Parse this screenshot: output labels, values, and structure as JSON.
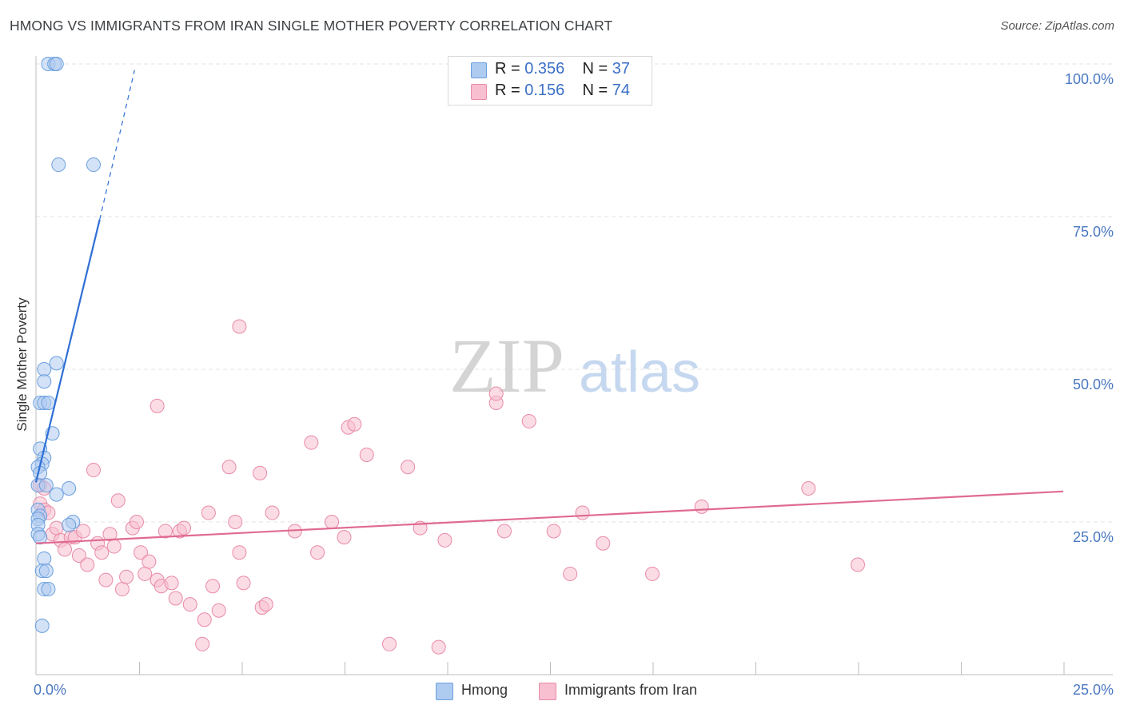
{
  "title": "HMONG VS IMMIGRANTS FROM IRAN SINGLE MOTHER POVERTY CORRELATION CHART",
  "source": "Source: ZipAtlas.com",
  "watermark": {
    "zip": "ZIP",
    "atlas": "atlas"
  },
  "legend": {
    "rows": [
      {
        "r_label": "R =",
        "r_value": "0.356",
        "n_label": "N =",
        "n_value": "37"
      },
      {
        "r_label": "R =",
        "r_value": "0.156",
        "n_label": "N =",
        "n_value": "74"
      }
    ]
  },
  "bottom_legend": {
    "hmong": "Hmong",
    "iran": "Immigrants from Iran"
  },
  "colors": {
    "hmong_fill": "#aecbf0",
    "hmong_stroke": "#6b9fde",
    "hmong_line": "#2f6fd6",
    "iran_fill": "#f8bfd0",
    "iran_stroke": "#e98aa7",
    "iran_line": "#e06a93",
    "tick_text": "#4a78c2",
    "grid": "#e3e3e3"
  },
  "chart_data": {
    "type": "scatter",
    "title": "HMONG VS IMMIGRANTS FROM IRAN SINGLE MOTHER POVERTY CORRELATION CHART",
    "xlabel": "",
    "ylabel": "Single Mother Poverty",
    "xlim": [
      0,
      25
    ],
    "ylim": [
      0,
      100
    ],
    "x_tick_labels": [
      {
        "value": 0,
        "label": "0.0%"
      },
      {
        "value": 25,
        "label": "25.0%"
      }
    ],
    "x_minor_ticks": [
      2.5,
      5,
      7.5,
      10,
      12.5,
      15,
      17.5,
      20,
      22.5,
      25
    ],
    "y_ticks": [
      {
        "value": 25,
        "label": "25.0%"
      },
      {
        "value": 50,
        "label": "50.0%"
      },
      {
        "value": 75,
        "label": "75.0%"
      },
      {
        "value": 100,
        "label": "100.0%"
      }
    ],
    "grid": true,
    "series": [
      {
        "name": "Hmong",
        "R": 0.356,
        "N": 37,
        "points": [
          [
            0.3,
            100
          ],
          [
            0.45,
            100
          ],
          [
            0.5,
            100
          ],
          [
            0.55,
            83.5
          ],
          [
            1.4,
            83.5
          ],
          [
            0.5,
            51
          ],
          [
            0.2,
            50
          ],
          [
            0.2,
            48
          ],
          [
            0.1,
            44.5
          ],
          [
            0.2,
            44.5
          ],
          [
            0.3,
            44.5
          ],
          [
            0.4,
            39.5
          ],
          [
            0.1,
            37
          ],
          [
            0.2,
            35.5
          ],
          [
            0.15,
            34.5
          ],
          [
            0.05,
            34
          ],
          [
            0.1,
            33
          ],
          [
            0.05,
            31
          ],
          [
            0.25,
            31
          ],
          [
            0.8,
            30.5
          ],
          [
            0.5,
            29.5
          ],
          [
            0.05,
            27
          ],
          [
            0.1,
            26
          ],
          [
            0.05,
            25.5
          ],
          [
            0.9,
            25
          ],
          [
            0.8,
            24.5
          ],
          [
            0.05,
            24.5
          ],
          [
            0.05,
            23
          ],
          [
            0.1,
            22.5
          ],
          [
            0.2,
            19
          ],
          [
            0.15,
            17
          ],
          [
            0.25,
            17
          ],
          [
            0.2,
            14
          ],
          [
            0.3,
            14
          ],
          [
            0.15,
            8
          ]
        ],
        "trendline": {
          "x0": 0,
          "y0": 31.5,
          "x1": 1.55,
          "y1": 74.5,
          "dashed_to": {
            "x": 2.4,
            "y": 99
          }
        }
      },
      {
        "name": "Immigrants from Iran",
        "R": 0.156,
        "N": 74,
        "points": [
          [
            0.1,
            31
          ],
          [
            0.2,
            30.5
          ],
          [
            0.1,
            28
          ],
          [
            0.2,
            27
          ],
          [
            0.3,
            26.5
          ],
          [
            0.4,
            23
          ],
          [
            0.5,
            24
          ],
          [
            0.6,
            22
          ],
          [
            0.7,
            20.5
          ],
          [
            0.85,
            22.5
          ],
          [
            0.95,
            22.5
          ],
          [
            1.05,
            19.5
          ],
          [
            1.15,
            23.5
          ],
          [
            1.25,
            18
          ],
          [
            1.4,
            33.5
          ],
          [
            1.5,
            21.5
          ],
          [
            1.6,
            20
          ],
          [
            1.7,
            15.5
          ],
          [
            1.8,
            23
          ],
          [
            1.9,
            21
          ],
          [
            2.0,
            28.5
          ],
          [
            2.1,
            14
          ],
          [
            2.2,
            16
          ],
          [
            2.35,
            24
          ],
          [
            2.45,
            25
          ],
          [
            2.55,
            20
          ],
          [
            2.65,
            16.5
          ],
          [
            2.75,
            18.5
          ],
          [
            2.95,
            15.5
          ],
          [
            3.05,
            14.5
          ],
          [
            3.15,
            23.5
          ],
          [
            3.3,
            15
          ],
          [
            3.4,
            12.5
          ],
          [
            3.5,
            23.5
          ],
          [
            3.6,
            24
          ],
          [
            3.75,
            11.5
          ],
          [
            4.05,
            5
          ],
          [
            4.1,
            9
          ],
          [
            4.2,
            26.5
          ],
          [
            4.3,
            14.5
          ],
          [
            4.45,
            10.5
          ],
          [
            4.7,
            34
          ],
          [
            4.85,
            25
          ],
          [
            4.95,
            20
          ],
          [
            5.05,
            15
          ],
          [
            5.45,
            33
          ],
          [
            5.5,
            11
          ],
          [
            5.6,
            11.5
          ],
          [
            5.75,
            26.5
          ],
          [
            2.95,
            44
          ],
          [
            4.95,
            57
          ],
          [
            6.3,
            23.5
          ],
          [
            6.85,
            20
          ],
          [
            6.7,
            38
          ],
          [
            7.2,
            25
          ],
          [
            7.5,
            22.5
          ],
          [
            7.6,
            40.5
          ],
          [
            7.75,
            41
          ],
          [
            8.05,
            36
          ],
          [
            8.6,
            5
          ],
          [
            9.05,
            34
          ],
          [
            9.35,
            24
          ],
          [
            9.8,
            4.5
          ],
          [
            9.95,
            22
          ],
          [
            11.2,
            44.5
          ],
          [
            11.2,
            46
          ],
          [
            11.4,
            23.5
          ],
          [
            12.0,
            41.5
          ],
          [
            12.6,
            23.5
          ],
          [
            13.0,
            16.5
          ],
          [
            13.3,
            26.5
          ],
          [
            13.8,
            21.5
          ],
          [
            15.0,
            16.5
          ],
          [
            16.2,
            27.5
          ],
          [
            18.8,
            30.5
          ],
          [
            20.0,
            18
          ]
        ],
        "trendline": {
          "x0": 0,
          "y0": 21.5,
          "x1": 25,
          "y1": 30
        }
      }
    ]
  }
}
